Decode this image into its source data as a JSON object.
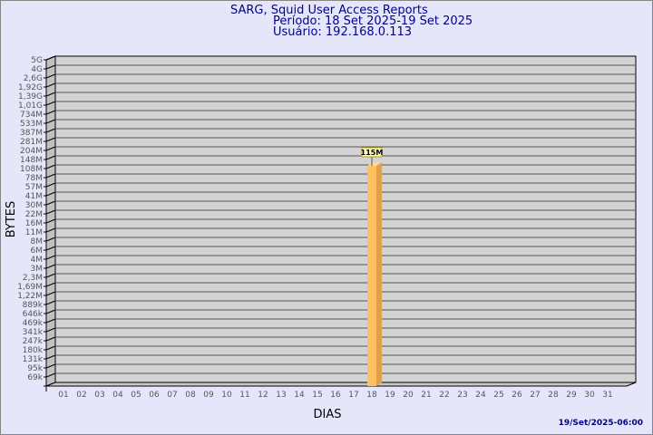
{
  "header": {
    "title": "SARG, Squid User Access Reports",
    "period": "Período: 18 Set 2025-19 Set 2025",
    "user": "Usuário: 192.168.0.113"
  },
  "footer": {
    "timestamp": "19/Set/2025-06:00"
  },
  "colors": {
    "background": "#e6e6fa",
    "plot": "#d3d3d3",
    "bar": "#ffc060",
    "title": "#00008b"
  },
  "chart_data": {
    "type": "bar",
    "xlabel": "DIAS",
    "ylabel": "BYTES",
    "yscale": "log",
    "yticks": [
      "5G",
      "4G",
      "2,6G",
      "1,92G",
      "1,39G",
      "1,01G",
      "734M",
      "533M",
      "387M",
      "281M",
      "204M",
      "148M",
      "108M",
      "78M",
      "57M",
      "41M",
      "30M",
      "22M",
      "16M",
      "11M",
      "8M",
      "6M",
      "4M",
      "3M",
      "2,3M",
      "1,69M",
      "1,22M",
      "889k",
      "646k",
      "469k",
      "341k",
      "247k",
      "180k",
      "131k",
      "95k",
      "69k"
    ],
    "categories": [
      "01",
      "02",
      "03",
      "04",
      "05",
      "06",
      "07",
      "08",
      "09",
      "10",
      "11",
      "12",
      "13",
      "14",
      "15",
      "16",
      "17",
      "18",
      "19",
      "20",
      "21",
      "22",
      "23",
      "24",
      "25",
      "26",
      "27",
      "28",
      "29",
      "30",
      "31"
    ],
    "bars": [
      {
        "category": "18",
        "value": "115M",
        "level_tick": "115M"
      }
    ],
    "grid": true
  }
}
